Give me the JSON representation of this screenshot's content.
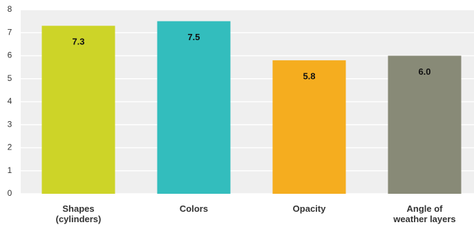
{
  "chart_data": {
    "type": "bar",
    "categories": [
      "Shapes\n(cylinders)",
      "Colors",
      "Opacity",
      "Angle of\nweather layers"
    ],
    "values": [
      7.3,
      7.5,
      5.8,
      6.0
    ],
    "value_labels": [
      "7.3",
      "7.5",
      "5.8",
      "6.0"
    ],
    "colors": [
      "#cdd428",
      "#33bdbd",
      "#f5ad1f",
      "#888a77"
    ],
    "ylim": [
      0,
      8
    ],
    "yticks": [
      0,
      1,
      2,
      3,
      4,
      5,
      6,
      7,
      8
    ],
    "grid": true
  }
}
